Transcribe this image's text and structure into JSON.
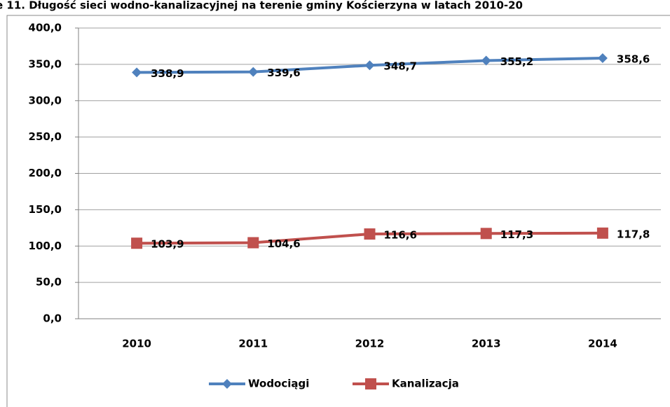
{
  "chart_data": {
    "type": "line",
    "title": "e 11. Długość sieci wodno-kanalizacyjnej na terenie gminy Kościerzyna w latach 2010-20",
    "categories": [
      "2010",
      "2011",
      "2012",
      "2013",
      "2014"
    ],
    "series": [
      {
        "name": "Wodociągi",
        "color": "#4f81bd",
        "marker": "diamond",
        "values": [
          338.9,
          339.6,
          348.7,
          355.2,
          358.6
        ],
        "value_labels": [
          "338,9",
          "339,6",
          "348,7",
          "355,2",
          "358,6"
        ]
      },
      {
        "name": "Kanalizacja",
        "color": "#c0504d",
        "marker": "square",
        "values": [
          103.9,
          104.6,
          116.6,
          117.3,
          117.8
        ],
        "value_labels": [
          "103,9",
          "104,6",
          "116,6",
          "117,3",
          "117,8"
        ]
      }
    ],
    "ylim": [
      0,
      400
    ],
    "yticks": [
      {
        "value": 0,
        "label": "0,0"
      },
      {
        "value": 50,
        "label": "50,0"
      },
      {
        "value": 100,
        "label": "100,0"
      },
      {
        "value": 150,
        "label": "150,0"
      },
      {
        "value": 200,
        "label": "200,0"
      },
      {
        "value": 250,
        "label": "250,0"
      },
      {
        "value": 300,
        "label": "300,0"
      },
      {
        "value": 350,
        "label": "350,0"
      },
      {
        "value": 400,
        "label": "400,0"
      }
    ],
    "grid": true,
    "legend": "bottom"
  }
}
